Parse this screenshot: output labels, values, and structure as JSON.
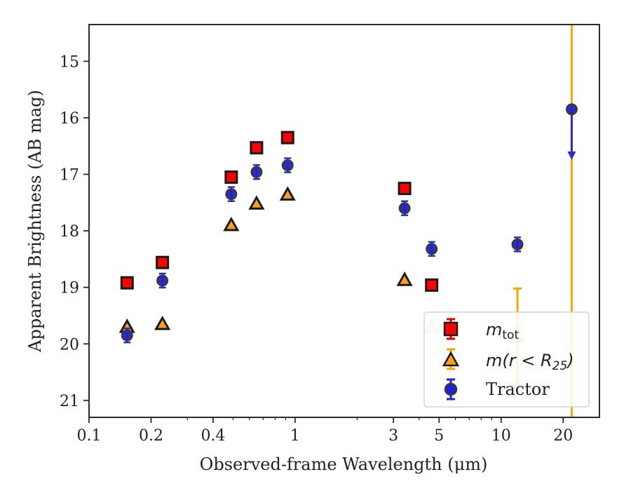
{
  "chart_data": {
    "type": "scatter",
    "xlabel": "Observed-frame Wavelength (μm)",
    "ylabel": "Apparent Brightness (AB mag)",
    "xscale": "log",
    "xlim": [
      0.1,
      30
    ],
    "ylim": [
      21.3,
      14.35
    ],
    "y_inverted": true,
    "x_ticks": [
      {
        "value": 0.1,
        "label": "0.1"
      },
      {
        "value": 0.2,
        "label": "0.2"
      },
      {
        "value": 0.4,
        "label": "0.4"
      },
      {
        "value": 1,
        "label": "1"
      },
      {
        "value": 3,
        "label": "3"
      },
      {
        "value": 5,
        "label": "5"
      },
      {
        "value": 10,
        "label": "10"
      },
      {
        "value": 20,
        "label": "20"
      }
    ],
    "y_ticks": [
      {
        "value": 15,
        "label": "15"
      },
      {
        "value": 16,
        "label": "16"
      },
      {
        "value": 17,
        "label": "17"
      },
      {
        "value": 18,
        "label": "18"
      },
      {
        "value": 19,
        "label": "19"
      },
      {
        "value": 20,
        "label": "20"
      },
      {
        "value": 21,
        "label": "21"
      }
    ],
    "legend_position": "lower-right",
    "series": [
      {
        "name": "m_tot",
        "marker": "square",
        "color": "#ff0000",
        "edge": "#1a1a1a",
        "points": [
          {
            "x": 0.153,
            "y": 18.92
          },
          {
            "x": 0.227,
            "y": 18.56
          },
          {
            "x": 0.49,
            "y": 17.05
          },
          {
            "x": 0.65,
            "y": 16.53
          },
          {
            "x": 0.92,
            "y": 16.35
          },
          {
            "x": 3.4,
            "y": 17.25
          },
          {
            "x": 4.6,
            "y": 18.96
          }
        ]
      },
      {
        "name": "m(r<R25)",
        "marker": "triangle",
        "color": "#ff9f1c",
        "edge": "#1a1a1a",
        "points": [
          {
            "x": 0.153,
            "y": 19.7
          },
          {
            "x": 0.227,
            "y": 19.65
          },
          {
            "x": 0.49,
            "y": 17.9
          },
          {
            "x": 0.65,
            "y": 17.52
          },
          {
            "x": 0.92,
            "y": 17.36
          },
          {
            "x": 3.4,
            "y": 18.87
          },
          {
            "x": 4.6,
            "y": 19.7
          },
          {
            "x": 12.0,
            "y": 19.87,
            "yerr_low": 19.02,
            "yerr_high": 20.72
          }
        ]
      },
      {
        "name": "Tractor",
        "marker": "circle",
        "color": "#1f1fd6",
        "edge": "#3a3a3a",
        "points": [
          {
            "x": 0.153,
            "y": 19.85
          },
          {
            "x": 0.227,
            "y": 18.88
          },
          {
            "x": 0.49,
            "y": 17.35
          },
          {
            "x": 0.65,
            "y": 16.96
          },
          {
            "x": 0.92,
            "y": 16.84
          },
          {
            "x": 3.4,
            "y": 17.6
          },
          {
            "x": 4.6,
            "y": 18.32
          },
          {
            "x": 12.0,
            "y": 18.24
          },
          {
            "x": 22.0,
            "y": 15.85,
            "upper_limit_to": 16.72
          }
        ]
      }
    ],
    "vertical_errorbar": {
      "x": 22.0,
      "color": "#ffa500"
    }
  },
  "legend": {
    "m_tot_base": "m",
    "m_tot_sub": "tot",
    "m_r_main": "m(r < R",
    "m_r_sub": "25",
    "m_r_close": ")",
    "tractor": "Tractor"
  }
}
